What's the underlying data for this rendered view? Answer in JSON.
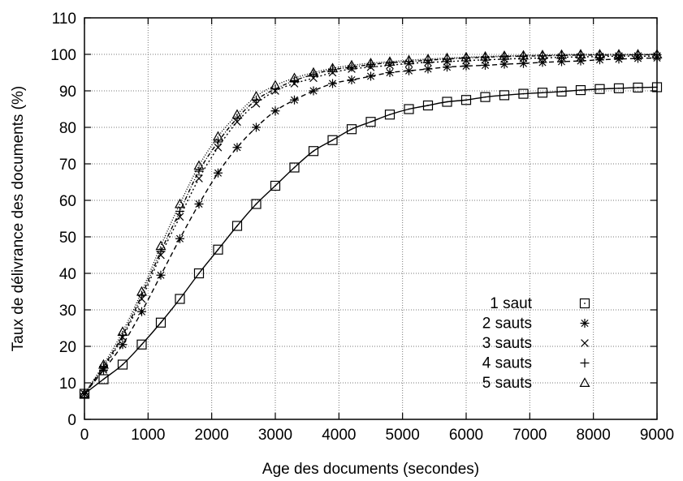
{
  "chart_data": {
    "type": "line",
    "title": "",
    "xlabel": "Age des documents (secondes)",
    "ylabel": "Taux de délivrance des documents (%)",
    "xlim": [
      0,
      9000
    ],
    "ylim": [
      0,
      110
    ],
    "xticks": [
      0,
      1000,
      2000,
      3000,
      4000,
      5000,
      6000,
      7000,
      8000,
      9000
    ],
    "yticks": [
      0,
      10,
      20,
      30,
      40,
      50,
      60,
      70,
      80,
      90,
      100,
      110
    ],
    "grid": true,
    "legend_position": "bottom-right",
    "x": [
      0,
      300,
      600,
      900,
      1200,
      1500,
      1800,
      2100,
      2400,
      2700,
      3000,
      3300,
      3600,
      3900,
      4200,
      4500,
      4800,
      5100,
      5400,
      5700,
      6000,
      6300,
      6600,
      6900,
      7200,
      7500,
      7800,
      8100,
      8400,
      8700,
      9000
    ],
    "series": [
      {
        "name": "1 saut",
        "marker": "square-dot",
        "dash": "solid",
        "values": [
          7,
          11,
          15,
          20.5,
          26.5,
          33,
          40,
          46.5,
          53,
          59,
          64,
          69,
          73.5,
          76.5,
          79.5,
          81.5,
          83.5,
          85,
          86,
          87,
          87.5,
          88.3,
          88.8,
          89.2,
          89.5,
          89.8,
          90.2,
          90.5,
          90.7,
          90.9,
          91
        ]
      },
      {
        "name": "2 sauts",
        "marker": "asterisk",
        "dash": "6 4",
        "values": [
          7,
          13.5,
          20.5,
          29.5,
          39.5,
          49.5,
          59,
          67.5,
          74.5,
          80,
          84.5,
          87.5,
          90,
          92,
          93,
          94,
          95,
          95.5,
          96,
          96.5,
          96.8,
          97,
          97.3,
          97.5,
          97.8,
          98,
          98.2,
          98.5,
          98.7,
          98.9,
          99
        ]
      },
      {
        "name": "3 sauts",
        "marker": "cross",
        "dash": "2 3",
        "values": [
          7,
          14,
          22.5,
          33,
          45,
          55.5,
          66,
          74.5,
          81.5,
          86.5,
          90,
          92,
          93.5,
          95,
          96,
          96.5,
          97,
          97.5,
          97.8,
          98,
          98.3,
          98.5,
          98.7,
          98.9,
          99,
          99.2,
          99.3,
          99.4,
          99.5,
          99.5,
          99.5
        ]
      },
      {
        "name": "4 sauts",
        "marker": "plus",
        "dash": "5 2 1 2",
        "values": [
          7,
          14.5,
          23,
          34,
          46,
          57,
          68,
          76,
          82.5,
          87.5,
          90.5,
          92.8,
          94.5,
          95.8,
          96.5,
          97.2,
          97.7,
          98,
          98.4,
          98.7,
          99,
          99.2,
          99.4,
          99.5,
          99.6,
          99.7,
          99.8,
          99.8,
          99.8,
          99.9,
          99.9
        ]
      },
      {
        "name": "5 sauts",
        "marker": "triangle",
        "dash": "1 2",
        "values": [
          7,
          15,
          24,
          35,
          47.5,
          59,
          69.5,
          77.5,
          83.5,
          88.5,
          91.5,
          93.5,
          95,
          96.2,
          97,
          97.6,
          98,
          98.4,
          98.7,
          99,
          99.2,
          99.4,
          99.6,
          99.7,
          99.8,
          99.9,
          100,
          100,
          100,
          100,
          100
        ]
      }
    ]
  }
}
